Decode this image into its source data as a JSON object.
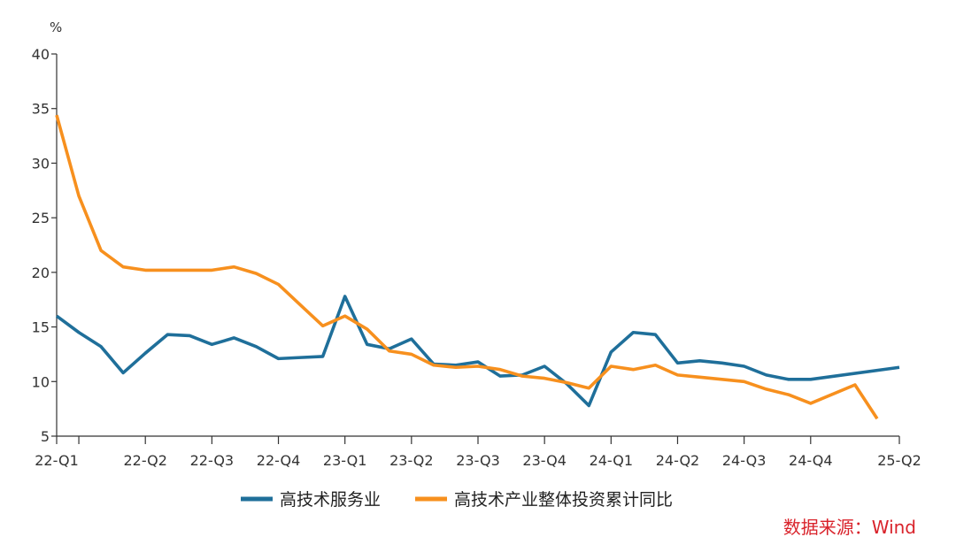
{
  "chart_data": {
    "type": "line",
    "unit": "%",
    "ylim": [
      5,
      40
    ],
    "yticks": [
      5,
      10,
      15,
      20,
      25,
      30,
      35,
      40
    ],
    "grid": false,
    "legend_position": "bottom-center",
    "x_periods": 38,
    "x_labels": [
      {
        "label": "22-Q1",
        "index": 0
      },
      {
        "label": "22-Q2",
        "index": 4
      },
      {
        "label": "22-Q3",
        "index": 7
      },
      {
        "label": "22-Q4",
        "index": 10
      },
      {
        "label": "23-Q1",
        "index": 13
      },
      {
        "label": "23-Q2",
        "index": 16
      },
      {
        "label": "23-Q3",
        "index": 19
      },
      {
        "label": "23-Q4",
        "index": 22
      },
      {
        "label": "24-Q1",
        "index": 25
      },
      {
        "label": "24-Q2",
        "index": 28
      },
      {
        "label": "24-Q3",
        "index": 31
      },
      {
        "label": "24-Q4",
        "index": 34
      },
      {
        "label": "25-Q2",
        "index": 38
      }
    ],
    "minor_tick_indices": [
      1
    ],
    "series": [
      {
        "name": "高技术服务业",
        "color": "#1f6f9a",
        "points": [
          [
            0,
            16.0
          ],
          [
            1,
            14.5
          ],
          [
            2,
            13.2
          ],
          [
            3,
            10.8
          ],
          [
            4,
            12.6
          ],
          [
            5,
            14.3
          ],
          [
            6,
            14.2
          ],
          [
            7,
            13.4
          ],
          [
            8,
            14.0
          ],
          [
            9,
            13.2
          ],
          [
            10,
            12.1
          ],
          [
            11,
            12.2
          ],
          [
            12,
            12.3
          ],
          [
            13,
            17.8
          ],
          [
            14,
            13.4
          ],
          [
            15,
            13.0
          ],
          [
            16,
            13.9
          ],
          [
            17,
            11.6
          ],
          [
            18,
            11.5
          ],
          [
            19,
            11.8
          ],
          [
            20,
            10.5
          ],
          [
            21,
            10.6
          ],
          [
            22,
            11.4
          ],
          [
            23,
            9.8
          ],
          [
            24,
            7.8
          ],
          [
            25,
            12.7
          ],
          [
            26,
            14.5
          ],
          [
            27,
            14.3
          ],
          [
            28,
            11.7
          ],
          [
            29,
            11.9
          ],
          [
            30,
            11.7
          ],
          [
            31,
            11.4
          ],
          [
            32,
            10.6
          ],
          [
            33,
            10.2
          ],
          [
            34,
            10.2
          ],
          [
            38,
            11.3
          ]
        ]
      },
      {
        "name": "高技术产业整体投资累计同比",
        "color": "#f7901e",
        "points": [
          [
            0,
            34.4
          ],
          [
            1,
            27.0
          ],
          [
            2,
            22.0
          ],
          [
            3,
            20.5
          ],
          [
            4,
            20.2
          ],
          [
            5,
            20.2
          ],
          [
            6,
            20.2
          ],
          [
            7,
            20.2
          ],
          [
            8,
            20.5
          ],
          [
            9,
            19.9
          ],
          [
            10,
            18.9
          ],
          [
            11,
            17.0
          ],
          [
            12,
            15.1
          ],
          [
            13,
            16.0
          ],
          [
            14,
            14.8
          ],
          [
            15,
            12.8
          ],
          [
            16,
            12.5
          ],
          [
            17,
            11.5
          ],
          [
            18,
            11.3
          ],
          [
            19,
            11.4
          ],
          [
            20,
            11.1
          ],
          [
            21,
            10.5
          ],
          [
            22,
            10.3
          ],
          [
            23,
            9.9
          ],
          [
            24,
            9.4
          ],
          [
            25,
            11.4
          ],
          [
            26,
            11.1
          ],
          [
            27,
            11.5
          ],
          [
            28,
            10.6
          ],
          [
            29,
            10.4
          ],
          [
            30,
            10.2
          ],
          [
            31,
            10.0
          ],
          [
            32,
            9.3
          ],
          [
            33,
            8.8
          ],
          [
            34,
            8.0
          ],
          [
            36,
            9.7
          ],
          [
            37,
            6.6
          ]
        ]
      }
    ]
  },
  "source": "数据来源：Wind"
}
